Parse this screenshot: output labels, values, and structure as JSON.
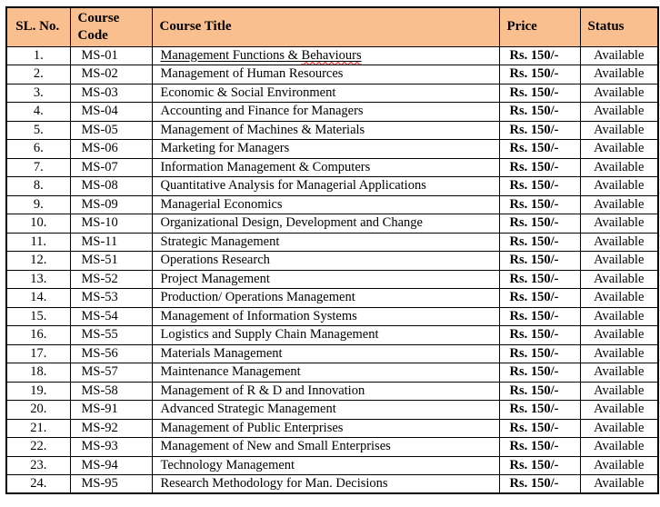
{
  "page": {
    "background": "#ffffff"
  },
  "table": {
    "header": {
      "bg_color": "#FABF8F",
      "columns": [
        "SL. No.",
        "Course Code",
        "Course Title",
        "Price",
        "Status"
      ]
    },
    "rows": [
      {
        "sl": "1.",
        "code": "MS-01",
        "title": "Management Functions & Behaviours",
        "price": "Rs. 150/-",
        "status": "Available",
        "title_underlined": true,
        "spellcheck_word": "Behaviours"
      },
      {
        "sl": "2.",
        "code": "MS-02",
        "title": "Management of Human Resources",
        "price": "Rs. 150/-",
        "status": "Available"
      },
      {
        "sl": "3.",
        "code": "MS-03",
        "title": "Economic & Social Environment",
        "price": "Rs. 150/-",
        "status": "Available"
      },
      {
        "sl": "4.",
        "code": "MS-04",
        "title": "Accounting and Finance for Managers",
        "price": "Rs. 150/-",
        "status": "Available"
      },
      {
        "sl": "5.",
        "code": "MS-05",
        "title": "Management of Machines & Materials",
        "price": "Rs. 150/-",
        "status": "Available"
      },
      {
        "sl": "6.",
        "code": "MS-06",
        "title": "Marketing for Managers",
        "price": "Rs. 150/-",
        "status": "Available"
      },
      {
        "sl": "7.",
        "code": "MS-07",
        "title": "Information Management & Computers",
        "price": "Rs. 150/-",
        "status": "Available"
      },
      {
        "sl": "8.",
        "code": "MS-08",
        "title": "Quantitative Analysis for Managerial Applications",
        "price": "Rs. 150/-",
        "status": "Available"
      },
      {
        "sl": "9.",
        "code": "MS-09",
        "title": "Managerial Economics",
        "price": "Rs. 150/-",
        "status": "Available"
      },
      {
        "sl": "10.",
        "code": "MS-10",
        "title": "Organizational Design, Development and Change",
        "price": "Rs. 150/-",
        "status": "Available"
      },
      {
        "sl": "11.",
        "code": "MS-11",
        "title": "Strategic Management",
        "price": "Rs. 150/-",
        "status": "Available"
      },
      {
        "sl": "12.",
        "code": "MS-51",
        "title": "Operations Research",
        "price": "Rs. 150/-",
        "status": "Available"
      },
      {
        "sl": "13.",
        "code": "MS-52",
        "title": "Project Management",
        "price": "Rs. 150/-",
        "status": "Available"
      },
      {
        "sl": "14.",
        "code": "MS-53",
        "title": "Production/ Operations Management",
        "price": "Rs. 150/-",
        "status": "Available"
      },
      {
        "sl": "15.",
        "code": "MS-54",
        "title": "Management of Information Systems",
        "price": "Rs. 150/-",
        "status": "Available"
      },
      {
        "sl": "16.",
        "code": "MS-55",
        "title": "Logistics and Supply Chain Management",
        "price": "Rs. 150/-",
        "status": "Available"
      },
      {
        "sl": "17.",
        "code": "MS-56",
        "title": "Materials Management",
        "price": "Rs. 150/-",
        "status": "Available"
      },
      {
        "sl": "18.",
        "code": "MS-57",
        "title": "Maintenance Management",
        "price": "Rs. 150/-",
        "status": "Available"
      },
      {
        "sl": "19.",
        "code": "MS-58",
        "title": "Management of R & D and Innovation",
        "price": "Rs. 150/-",
        "status": "Available"
      },
      {
        "sl": "20.",
        "code": "MS-91",
        "title": "Advanced Strategic Management",
        "price": "Rs. 150/-",
        "status": "Available"
      },
      {
        "sl": "21.",
        "code": "MS-92",
        "title": "Management of Public Enterprises",
        "price": "Rs. 150/-",
        "status": "Available"
      },
      {
        "sl": "22.",
        "code": "MS-93",
        "title": "Management of New and Small Enterprises",
        "price": "Rs. 150/-",
        "status": "Available"
      },
      {
        "sl": "23.",
        "code": "MS-94",
        "title": "Technology Management",
        "price": "Rs. 150/-",
        "status": "Available"
      },
      {
        "sl": "24.",
        "code": "MS-95",
        "title": "Research Methodology for Man. Decisions",
        "price": "Rs. 150/-",
        "status": "Available"
      }
    ]
  }
}
